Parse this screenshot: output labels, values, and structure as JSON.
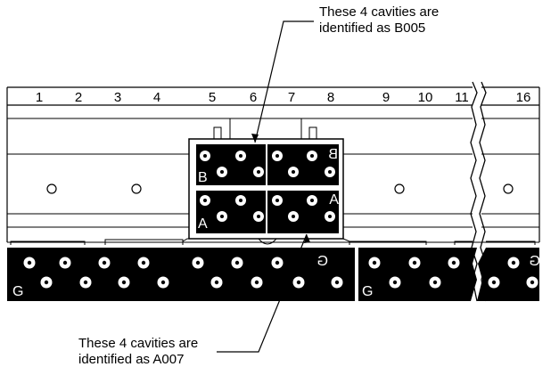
{
  "diagram": {
    "callout_top": {
      "line1": "These 4 cavities are",
      "line2": "identified as B005"
    },
    "callout_bottom": {
      "line1": "These 4 cavities are",
      "line2": "identified as A007"
    },
    "position_numbers": [
      "1",
      "2",
      "3",
      "4",
      "5",
      "6",
      "7",
      "8",
      "9",
      "10",
      "11",
      "16"
    ],
    "connector_labels": {
      "block_b": "B",
      "block_a": "A",
      "ground": "G"
    }
  }
}
